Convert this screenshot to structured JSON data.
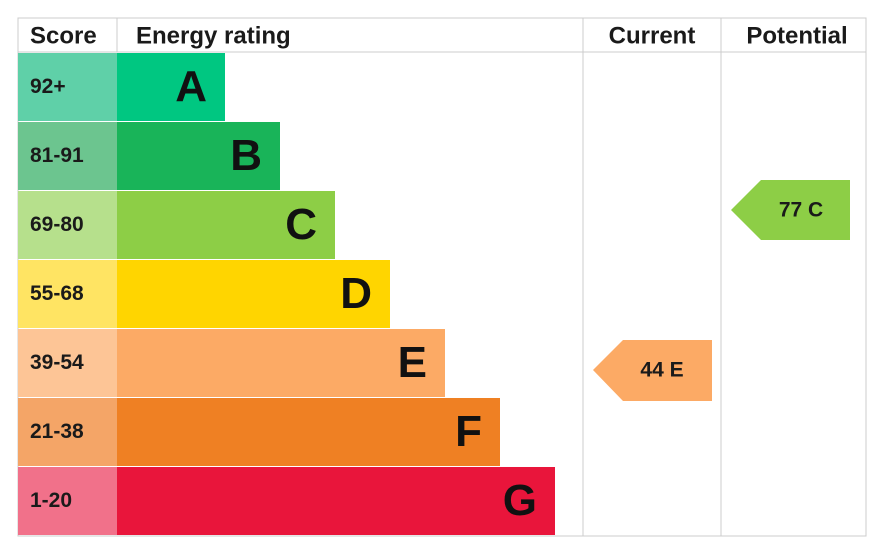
{
  "header": {
    "score": "Score",
    "energy_rating": "Energy rating",
    "current": "Current",
    "potential": "Potential"
  },
  "rows": [
    {
      "score": "92+",
      "letter": "A",
      "color": "#00c781",
      "score_color": "#5fd0a8"
    },
    {
      "score": "81-91",
      "letter": "B",
      "color": "#19b459",
      "score_color": "#6cc58f"
    },
    {
      "score": "69-80",
      "letter": "C",
      "color": "#8dce46",
      "score_color": "#b6e08c"
    },
    {
      "score": "55-68",
      "letter": "D",
      "color": "#ffd500",
      "score_color": "#ffe463"
    },
    {
      "score": "39-54",
      "letter": "E",
      "color": "#fcaa65",
      "score_color": "#fdc596"
    },
    {
      "score": "21-38",
      "letter": "F",
      "color": "#ef8023",
      "score_color": "#f4a567"
    },
    {
      "score": "1-20",
      "letter": "G",
      "color": "#e9153b",
      "score_color": "#f1718a"
    }
  ],
  "current": {
    "label": "44 E",
    "color": "#fcaa65"
  },
  "potential": {
    "label": "77 C",
    "color": "#8dce46"
  }
}
